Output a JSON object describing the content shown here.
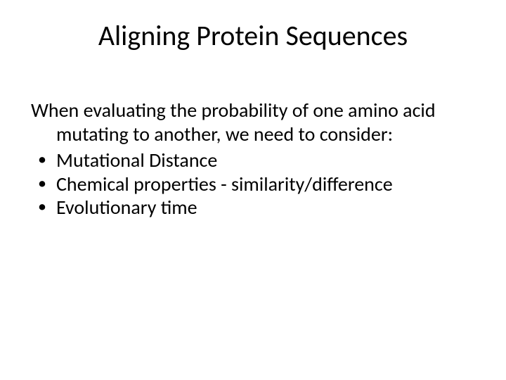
{
  "slide": {
    "title": "Aligning Protein Sequences",
    "intro": "When evaluating the probability of one amino acid mutating to another, we need to consider:",
    "bullets": [
      "Mutational Distance",
      "Chemical properties - similarity/difference",
      "Evolutionary time"
    ],
    "style": {
      "background_color": "#ffffff",
      "text_color": "#000000",
      "title_fontsize": 40,
      "body_fontsize": 28,
      "font_family": "Calibri"
    }
  }
}
